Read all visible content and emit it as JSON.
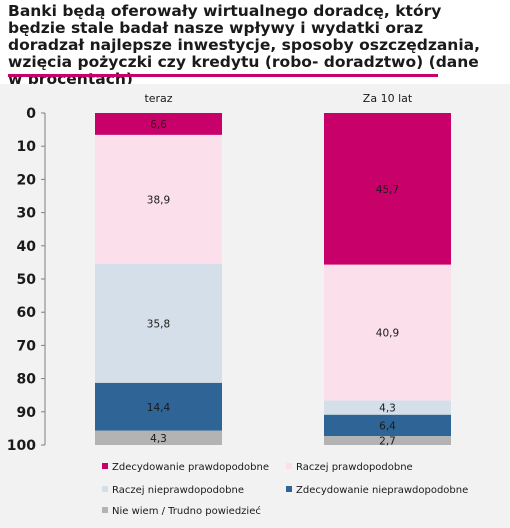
{
  "title": "Banki będą oferowały wirtualnego doradcę, który będzie stale badał nasze wpływy i wydatki oraz doradzał najlepsze inwestycje, sposoby oszczędzania, wzięcia pożyczki czy kredytu (robo- doradztwo) (dane w procentach)",
  "chart_data": {
    "type": "bar",
    "stacked": true,
    "y_axis_inverted": true,
    "categories": [
      "teraz",
      "Za 10 lat"
    ],
    "ylim": [
      0,
      100
    ],
    "yticks": [
      0,
      10,
      20,
      30,
      40,
      50,
      60,
      70,
      80,
      90,
      100
    ],
    "series": [
      {
        "name": "Zdecydowanie prawdopodobne",
        "color": "#c8006a",
        "values": [
          6.6,
          45.7
        ],
        "labels": [
          "6,6",
          "45,7"
        ]
      },
      {
        "name": "Raczej prawdopodobne",
        "color": "#fbe0ec",
        "values": [
          38.9,
          40.9
        ],
        "labels": [
          "38,9",
          "40,9"
        ]
      },
      {
        "name": "Raczej nieprawdopodobne",
        "color": "#d4dfe9",
        "values": [
          35.8,
          4.3
        ],
        "labels": [
          "35,8",
          "4,3"
        ]
      },
      {
        "name": "Zdecydowanie nieprawdopodobne",
        "color": "#2e6496",
        "values": [
          14.4,
          6.4
        ],
        "labels": [
          "14,4",
          "6,4"
        ]
      },
      {
        "name": "Nie wiem / Trudno powiedzieć",
        "color": "#b3b3b3",
        "values": [
          4.3,
          2.7
        ],
        "labels": [
          "4,3",
          "2,7"
        ]
      }
    ],
    "legend_position": "bottom",
    "grid": false
  }
}
